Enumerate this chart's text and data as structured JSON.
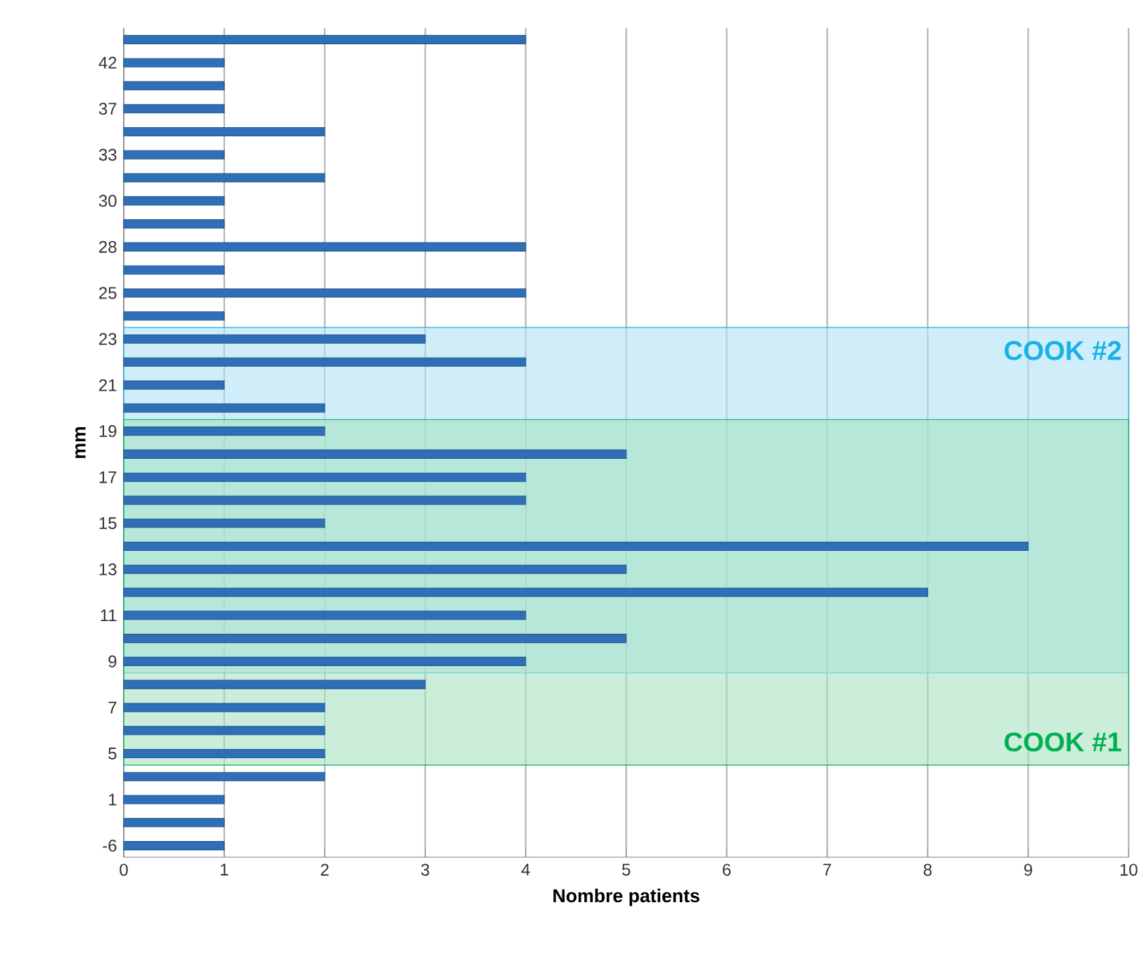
{
  "chart_data": {
    "type": "bar",
    "orientation": "horizontal",
    "xlabel": "Nombre patients",
    "ylabel": "mm",
    "categories": [
      null,
      "42",
      null,
      "37",
      null,
      "33",
      null,
      "30",
      null,
      "28",
      null,
      "25",
      null,
      "23",
      null,
      "21",
      null,
      "19",
      null,
      "17",
      null,
      "15",
      null,
      "13",
      null,
      "11",
      null,
      "9",
      null,
      "7",
      null,
      "5",
      null,
      "1",
      null,
      "-6"
    ],
    "values": [
      4,
      1,
      1,
      1,
      2,
      1,
      2,
      1,
      1,
      4,
      1,
      4,
      1,
      3,
      4,
      1,
      2,
      2,
      5,
      4,
      4,
      2,
      9,
      5,
      8,
      4,
      5,
      4,
      3,
      2,
      2,
      2,
      2,
      1,
      1,
      1
    ],
    "color": "#2e6fb7",
    "xlim": [
      0,
      10
    ],
    "xticks": [
      0,
      1,
      2,
      3,
      4,
      5,
      6,
      7,
      8,
      9,
      10
    ],
    "grid": "x",
    "bands": [
      {
        "axis": "y",
        "from": "23",
        "to": "9",
        "label": "COOK #2",
        "color": "#1ab0e8"
      },
      {
        "axis": "y",
        "from": "19",
        "to": "5",
        "label": "COOK #1",
        "color": "#00b050"
      }
    ]
  }
}
